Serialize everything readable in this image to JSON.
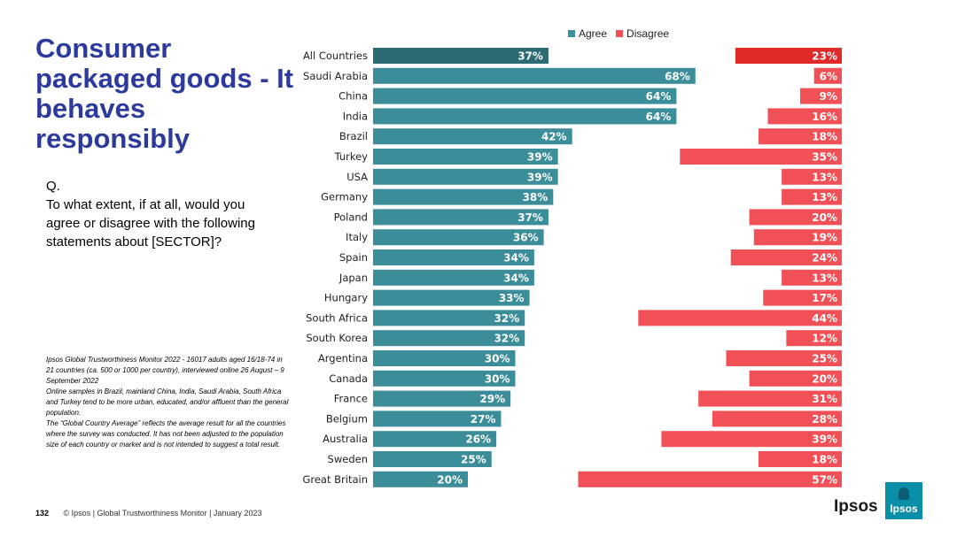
{
  "slide": {
    "title": "Consumer packaged goods - It behaves responsibly",
    "question_label": "Q.",
    "question": "To what extent, if at all, would you agree or disagree with the following statements about [SECTOR]?",
    "notes": [
      "Ipsos Global Trustworthiness Monitor 2022 - 16017 adults aged 16/18-74 in 21 countries (ca. 500 or 1000 per country), interviewed online 26 August – 9 September 2022",
      "Online samples in Brazil, mainland China, India, Saudi Arabia, South Africa and Turkey tend to be more urban, educated, and/or affluent than the general population.",
      "The “Global Country Average” reflects the average result for all the countries where the survey was conducted. It has not been adjusted to the population size of each country or market and is not intended to suggest a total result."
    ],
    "page_number": "132",
    "footer": "© Ipsos | Global Trustworthiness Monitor | January 2023",
    "logo_text": "Ipsos",
    "logo_box_text": "Ipsos"
  },
  "colors": {
    "agree": "#3a8d99",
    "agree_highlight": "#2c6a74",
    "disagree": "#f05056",
    "disagree_highlight": "#e02a2a"
  },
  "chart_data": {
    "type": "bar",
    "title": "",
    "xlabel": "",
    "ylabel": "",
    "legend": [
      "Agree",
      "Disagree"
    ],
    "legend_position": "top",
    "highlight_category": "All Countries",
    "categories": [
      "All Countries",
      "Saudi Arabia",
      "China",
      "India",
      "Brazil",
      "Turkey",
      "USA",
      "Germany",
      "Poland",
      "Italy",
      "Spain",
      "Japan",
      "Hungary",
      "South Africa",
      "South Korea",
      "Argentina",
      "Canada",
      "France",
      "Belgium",
      "Australia",
      "Sweden",
      "Great Britain"
    ],
    "series": [
      {
        "name": "Agree",
        "values": [
          37,
          68,
          64,
          64,
          42,
          39,
          39,
          38,
          37,
          36,
          34,
          34,
          33,
          32,
          32,
          30,
          30,
          29,
          27,
          26,
          25,
          20
        ]
      },
      {
        "name": "Disagree",
        "values": [
          23,
          6,
          9,
          16,
          18,
          35,
          13,
          13,
          20,
          19,
          24,
          13,
          17,
          44,
          12,
          25,
          20,
          31,
          28,
          39,
          18,
          57
        ]
      }
    ],
    "value_suffix": "%",
    "xlim": [
      0,
      100
    ]
  }
}
